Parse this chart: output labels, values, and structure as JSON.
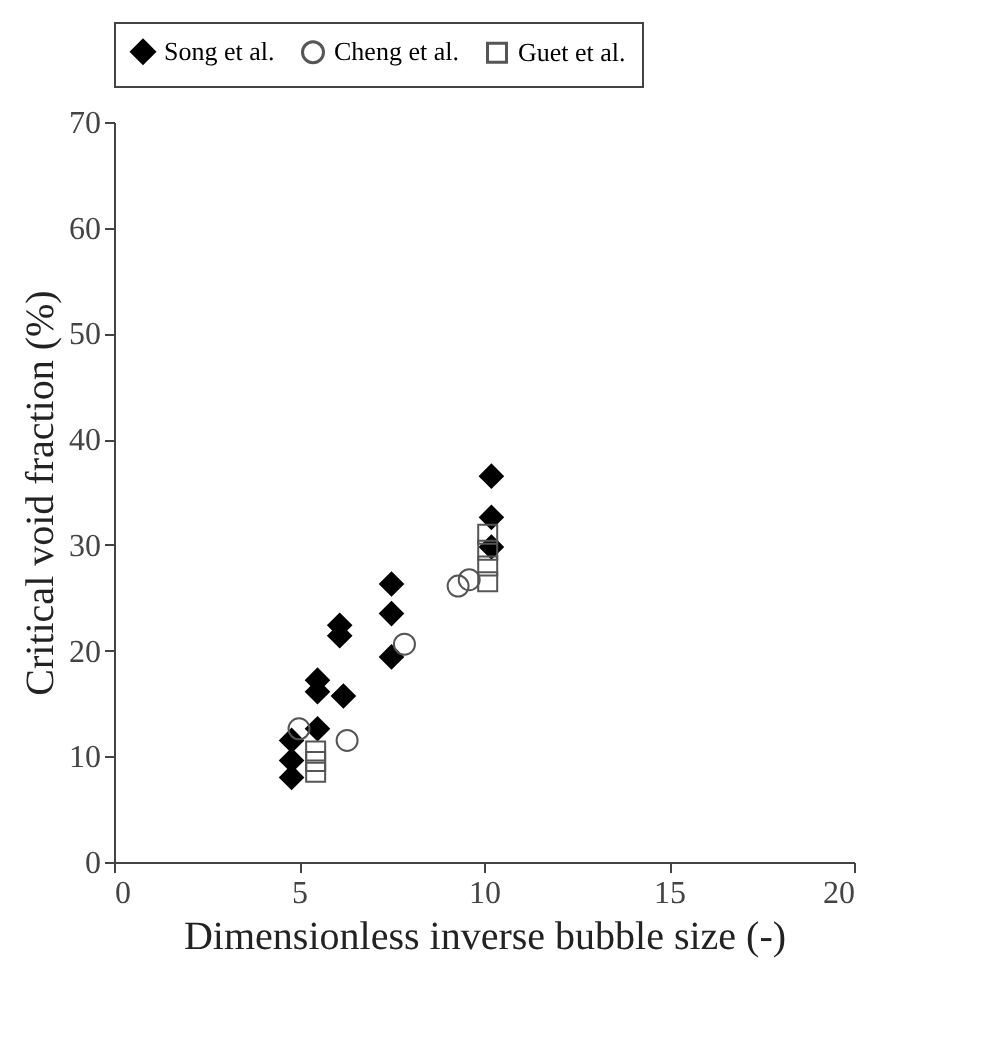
{
  "chart_data": {
    "type": "scatter",
    "xlabel": "Dimensionless inverse bubble size (-)",
    "ylabel": "Critical void fraction (%)",
    "xlim": [
      0,
      20
    ],
    "xticks": [
      0,
      5,
      10,
      15,
      20
    ],
    "ylim": [
      0,
      70
    ],
    "yticks": [
      0,
      10,
      20,
      30,
      40,
      50,
      60,
      70
    ],
    "grid": false,
    "legend": "top",
    "series": [
      {
        "name": "Song et al.",
        "color": "#000000",
        "marker": "diamond",
        "x": [
          4.8,
          4.8,
          4.8,
          5.5,
          5.5,
          5.5,
          6.2,
          6.1,
          6.1,
          7.5,
          7.5,
          7.5,
          10.2,
          10.2,
          10.2
        ],
        "values": [
          8.0,
          9.6,
          11.5,
          12.6,
          16.1,
          17.2,
          15.7,
          21.4,
          22.4,
          19.4,
          23.5,
          26.3,
          29.8,
          32.6,
          36.5
        ]
      },
      {
        "name": "Cheng et al.",
        "color": "#555555",
        "marker": "circle",
        "x": [
          5.0,
          6.3,
          7.85,
          9.3,
          9.6
        ],
        "values": [
          12.6,
          11.5,
          20.6,
          26.1,
          26.7
        ]
      },
      {
        "name": "Guet et al.",
        "color": "#555555",
        "marker": "square",
        "x": [
          5.45,
          5.45,
          5.45,
          10.1,
          10.1,
          10.1,
          10.1
        ],
        "values": [
          8.5,
          9.5,
          10.5,
          26.5,
          28,
          29.5,
          31
        ]
      }
    ]
  }
}
